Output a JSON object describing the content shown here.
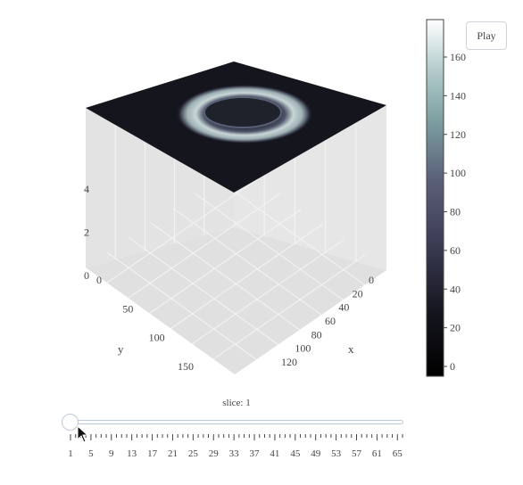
{
  "controls": {
    "play_label": "Play",
    "slider_label": "slice: 1",
    "slider_value": 1,
    "slider_min": 1,
    "slider_max": 66
  },
  "chart_data": {
    "type": "surface",
    "title": "",
    "scene": {
      "xaxis": {
        "title": "x",
        "range": [
          0,
          130
        ],
        "ticks": [
          0,
          20,
          40,
          60,
          80,
          100,
          120
        ]
      },
      "yaxis": {
        "title": "y",
        "range": [
          0,
          170
        ],
        "ticks": [
          0,
          50,
          100,
          150
        ]
      },
      "zaxis": {
        "title": "",
        "range": [
          0,
          6.7
        ],
        "ticks": [
          0,
          2,
          4
        ]
      },
      "background": "#e5e5e5",
      "grid": true
    },
    "slice_surface": {
      "z_level": 6.7,
      "colorscale": "bone",
      "description_values": {
        "min": 0,
        "max": 170
      }
    },
    "colorbar": {
      "range": [
        0,
        170
      ],
      "ticks": [
        0,
        20,
        40,
        60,
        80,
        100,
        120,
        140,
        160
      ]
    },
    "slider_ticks": [
      1,
      5,
      9,
      13,
      17,
      21,
      25,
      29,
      33,
      37,
      41,
      45,
      49,
      53,
      57,
      61,
      65
    ]
  }
}
